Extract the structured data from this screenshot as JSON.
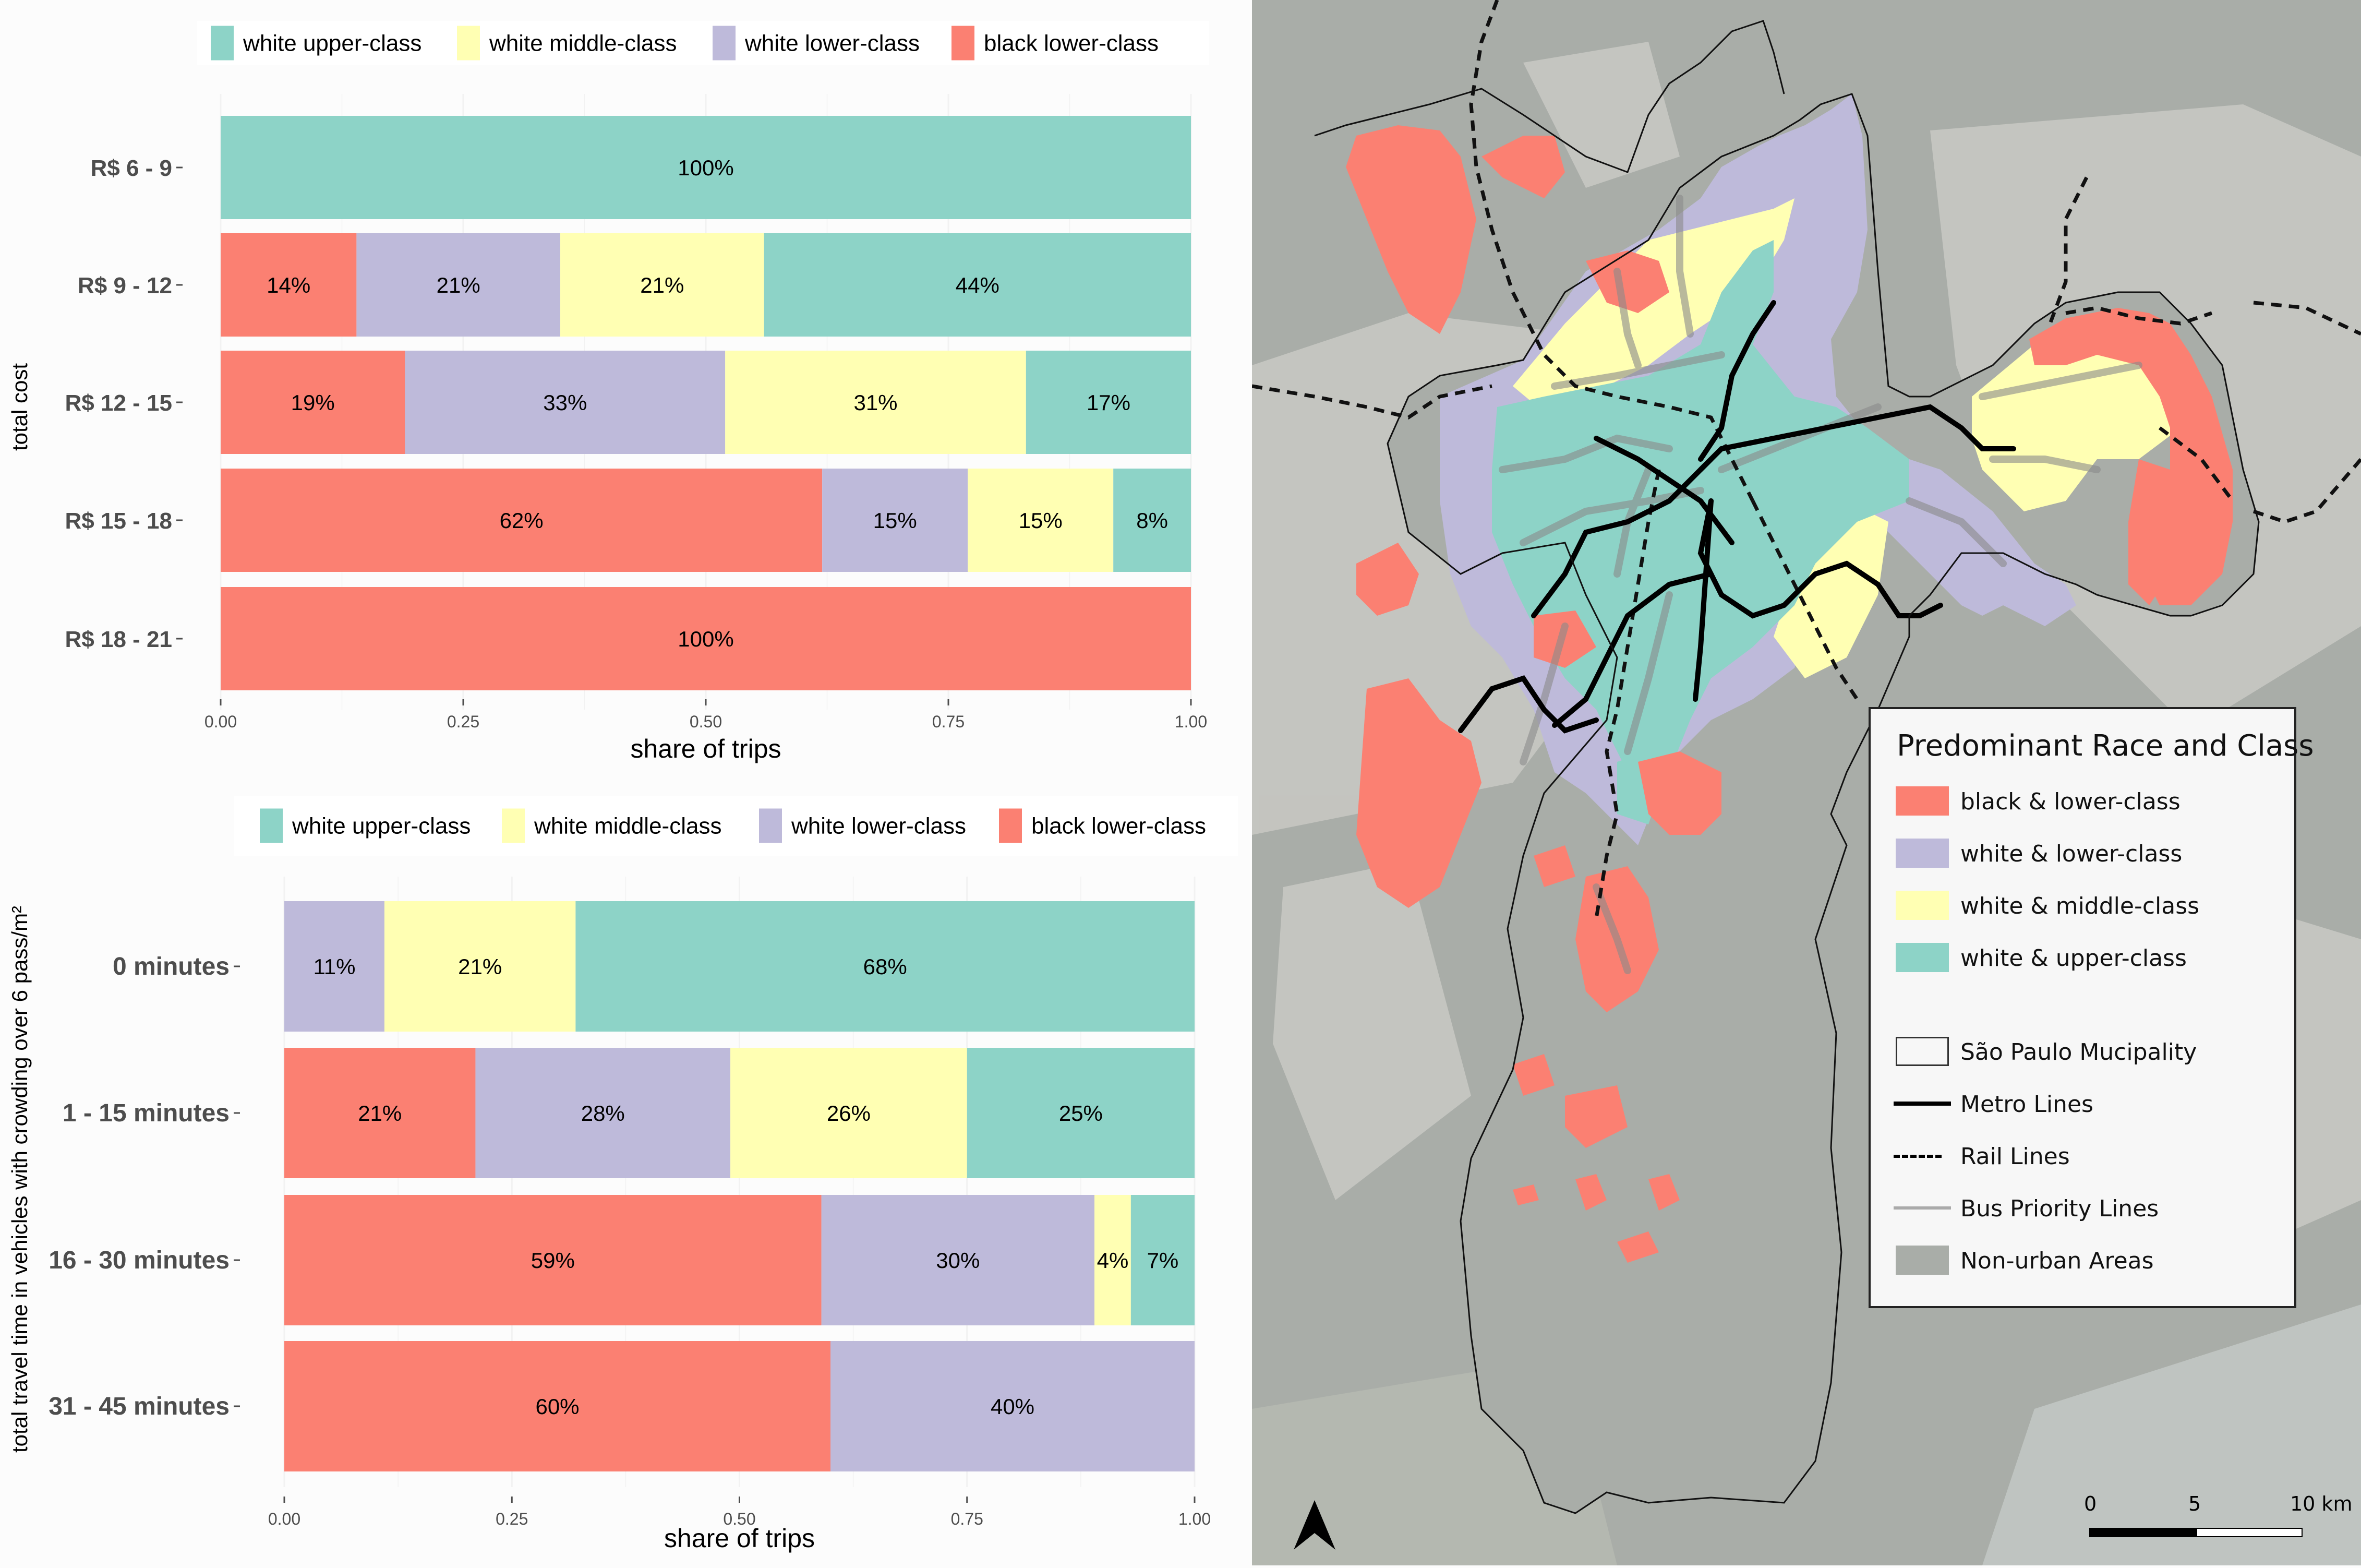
{
  "colors": {
    "white_upper": "#8dd3c7",
    "white_middle": "#ffffb3",
    "white_lower": "#bebada",
    "black_lower": "#fb8072",
    "non_urban": "#a9ada8",
    "background": "#fcfcfc"
  },
  "legend_bar": {
    "items": [
      {
        "key": "white_upper",
        "label": "white upper-class"
      },
      {
        "key": "white_middle",
        "label": "white middle-class"
      },
      {
        "key": "white_lower",
        "label": "white lower-class"
      },
      {
        "key": "black_lower",
        "label": "black lower-class"
      }
    ]
  },
  "chart_data": [
    {
      "type": "bar",
      "orientation": "horizontal",
      "stacked": true,
      "title": "",
      "xlabel": "share of trips",
      "ylabel": "total cost",
      "xlim": [
        0,
        1
      ],
      "xticks": [
        "0.00",
        "0.25",
        "0.50",
        "0.75",
        "1.00"
      ],
      "legend_position": "top",
      "categories": [
        "R$ 6 - 9",
        "R$ 9 - 12",
        "R$ 12 - 15",
        "R$ 15 - 18",
        "R$ 18 - 21"
      ],
      "series": [
        {
          "name": "black lower-class",
          "key": "black_lower",
          "values": [
            0,
            0.14,
            0.19,
            0.62,
            1.0
          ],
          "labels": [
            "",
            "14%",
            "19%",
            "62%",
            "100%"
          ]
        },
        {
          "name": "white lower-class",
          "key": "white_lower",
          "values": [
            0,
            0.21,
            0.33,
            0.15,
            0
          ],
          "labels": [
            "",
            "21%",
            "33%",
            "15%",
            ""
          ]
        },
        {
          "name": "white middle-class",
          "key": "white_middle",
          "values": [
            0,
            0.21,
            0.31,
            0.15,
            0
          ],
          "labels": [
            "",
            "21%",
            "31%",
            "15%",
            ""
          ]
        },
        {
          "name": "white upper-class",
          "key": "white_upper",
          "values": [
            1.0,
            0.44,
            0.17,
            0.08,
            0
          ],
          "labels": [
            "100%",
            "44%",
            "17%",
            "8%",
            ""
          ]
        }
      ]
    },
    {
      "type": "bar",
      "orientation": "horizontal",
      "stacked": true,
      "title": "",
      "xlabel": "share of trips",
      "ylabel": "total travel time in vehicles with crowding over 6 pass/m²",
      "xlim": [
        0,
        1
      ],
      "xticks": [
        "0.00",
        "0.25",
        "0.50",
        "0.75",
        "1.00"
      ],
      "legend_position": "top",
      "categories": [
        "0 minutes",
        "1 - 15 minutes",
        "16 - 30 minutes",
        "31 - 45 minutes"
      ],
      "series": [
        {
          "name": "black lower-class",
          "key": "black_lower",
          "values": [
            0,
            0.21,
            0.59,
            0.6
          ],
          "labels": [
            "",
            "21%",
            "59%",
            "60%"
          ]
        },
        {
          "name": "white lower-class",
          "key": "white_lower",
          "values": [
            0.11,
            0.28,
            0.3,
            0.4
          ],
          "labels": [
            "11%",
            "28%",
            "30%",
            "40%"
          ]
        },
        {
          "name": "white middle-class",
          "key": "white_middle",
          "values": [
            0.21,
            0.26,
            0.04,
            0
          ],
          "labels": [
            "21%",
            "26%",
            "4%",
            ""
          ]
        },
        {
          "name": "white upper-class",
          "key": "white_upper",
          "values": [
            0.68,
            0.25,
            0.07,
            0
          ],
          "labels": [
            "68%",
            "25%",
            "7%",
            ""
          ]
        }
      ]
    }
  ],
  "map": {
    "legend": {
      "title": "Predominant Race and Class",
      "classes": [
        {
          "label": "black & lower-class",
          "color": "#fb8072"
        },
        {
          "label": "white & lower-class",
          "color": "#bebada"
        },
        {
          "label": "white & middle-class",
          "color": "#ffffb3"
        },
        {
          "label": "white & upper-class",
          "color": "#8dd3c7"
        }
      ],
      "layers": [
        {
          "label": "São Paulo Mucipality",
          "symbol": "outline-box"
        },
        {
          "label": "Metro Lines",
          "symbol": "solid-line"
        },
        {
          "label": "Rail Lines",
          "symbol": "dashed-line"
        },
        {
          "label": "Bus Priority Lines",
          "symbol": "gray-line"
        },
        {
          "label": "Non-urban Areas",
          "symbol": "gray-box"
        }
      ]
    },
    "scale_bar": {
      "labels": [
        "0",
        "5",
        "10 km"
      ]
    },
    "north_arrow": "north-arrow-icon"
  }
}
